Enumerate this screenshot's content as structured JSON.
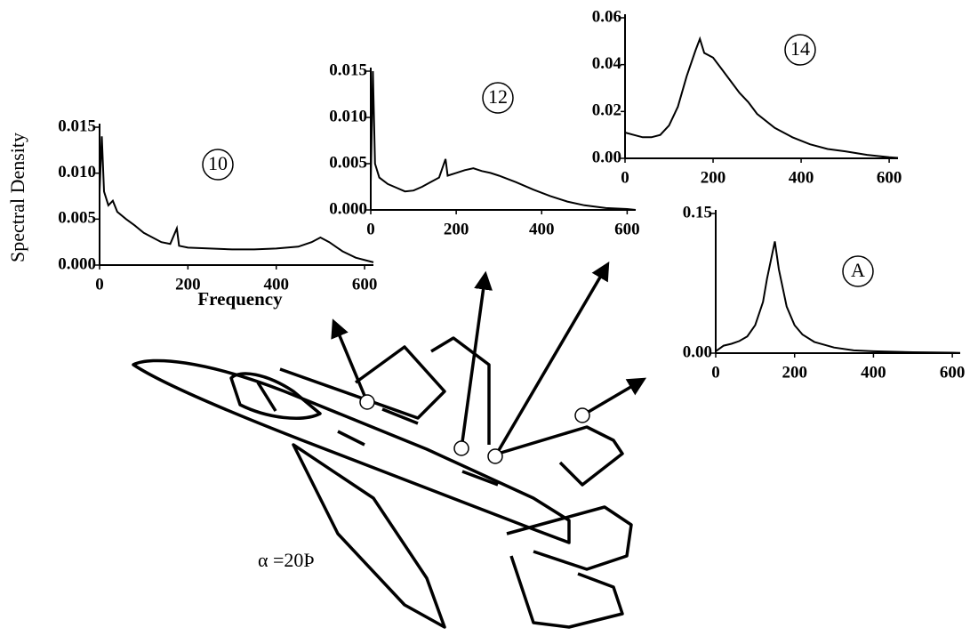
{
  "chart_data": [
    {
      "type": "line",
      "title": "10",
      "xlabel": "Frequency",
      "ylabel": "Spectral Density",
      "x": [
        0,
        5,
        10,
        20,
        30,
        40,
        60,
        80,
        100,
        120,
        140,
        160,
        175,
        180,
        200,
        250,
        300,
        350,
        400,
        450,
        480,
        500,
        520,
        550,
        580,
        620
      ],
      "series": [
        {
          "color": "#000000",
          "values": [
            0.008,
            0.014,
            0.008,
            0.0065,
            0.007,
            0.0058,
            0.005,
            0.0043,
            0.0035,
            0.003,
            0.0025,
            0.0023,
            0.004,
            0.0021,
            0.0019,
            0.0018,
            0.0017,
            0.0017,
            0.0018,
            0.002,
            0.0025,
            0.003,
            0.0025,
            0.0015,
            0.0008,
            0.0003
          ]
        }
      ],
      "xlim": [
        0,
        620
      ],
      "ylim": [
        0,
        0.015
      ],
      "xticks": [
        0,
        200,
        400,
        600
      ],
      "yticks": [
        {
          "value": 0,
          "label": "0.000"
        },
        0.005,
        {
          "value": 0.01,
          "label": "0.010"
        },
        0.015
      ]
    },
    {
      "type": "line",
      "title": "12",
      "x": [
        0,
        5,
        10,
        20,
        40,
        60,
        80,
        100,
        120,
        140,
        160,
        175,
        180,
        200,
        220,
        240,
        260,
        280,
        300,
        340,
        380,
        420,
        460,
        500,
        550,
        600,
        620
      ],
      "series": [
        {
          "color": "#000000",
          "values": [
            0.003,
            0.015,
            0.005,
            0.0035,
            0.0028,
            0.0024,
            0.002,
            0.0021,
            0.0025,
            0.003,
            0.0035,
            0.0055,
            0.0037,
            0.004,
            0.0043,
            0.0045,
            0.0042,
            0.004,
            0.0037,
            0.003,
            0.0022,
            0.0015,
            0.0009,
            0.0005,
            0.0002,
            0.0001,
            0
          ]
        }
      ],
      "xlim": [
        0,
        620
      ],
      "ylim": [
        0,
        0.015
      ],
      "xticks": [
        0,
        200,
        400,
        600
      ],
      "yticks": [
        {
          "value": 0,
          "label": "0.000"
        },
        0.005,
        {
          "value": 0.01,
          "label": "0.010"
        },
        0.015
      ]
    },
    {
      "type": "line",
      "title": "14",
      "x": [
        0,
        20,
        40,
        60,
        80,
        100,
        120,
        140,
        160,
        170,
        180,
        200,
        220,
        240,
        260,
        280,
        300,
        340,
        380,
        420,
        460,
        500,
        550,
        600,
        620
      ],
      "series": [
        {
          "color": "#000000",
          "values": [
            0.011,
            0.01,
            0.009,
            0.009,
            0.01,
            0.014,
            0.022,
            0.035,
            0.046,
            0.051,
            0.045,
            0.043,
            0.038,
            0.033,
            0.028,
            0.024,
            0.019,
            0.013,
            0.009,
            0.006,
            0.004,
            0.003,
            0.0015,
            0.0005,
            0.0002
          ]
        }
      ],
      "xlim": [
        0,
        620
      ],
      "ylim": [
        0,
        0.06
      ],
      "xticks": [
        0,
        200,
        400,
        600
      ],
      "yticks": [
        {
          "value": 0,
          "label": "0.00"
        },
        0.02,
        0.04,
        0.06
      ]
    },
    {
      "type": "line",
      "title": "A",
      "x": [
        0,
        20,
        40,
        60,
        80,
        100,
        120,
        130,
        140,
        150,
        160,
        170,
        180,
        200,
        220,
        250,
        300,
        350,
        400,
        500,
        600,
        620
      ],
      "series": [
        {
          "color": "#000000",
          "values": [
            0.002,
            0.008,
            0.01,
            0.013,
            0.018,
            0.03,
            0.055,
            0.08,
            0.1,
            0.12,
            0.09,
            0.07,
            0.05,
            0.03,
            0.02,
            0.012,
            0.006,
            0.003,
            0.002,
            0.001,
            0.0005,
            0.0003
          ]
        }
      ],
      "xlim": [
        0,
        620
      ],
      "ylim": [
        0,
        0.15
      ],
      "xticks": [
        0,
        200,
        400,
        600
      ],
      "yticks": [
        {
          "value": 0,
          "label": "0.00"
        },
        0.15
      ]
    }
  ],
  "annotation": "α =20Þ"
}
